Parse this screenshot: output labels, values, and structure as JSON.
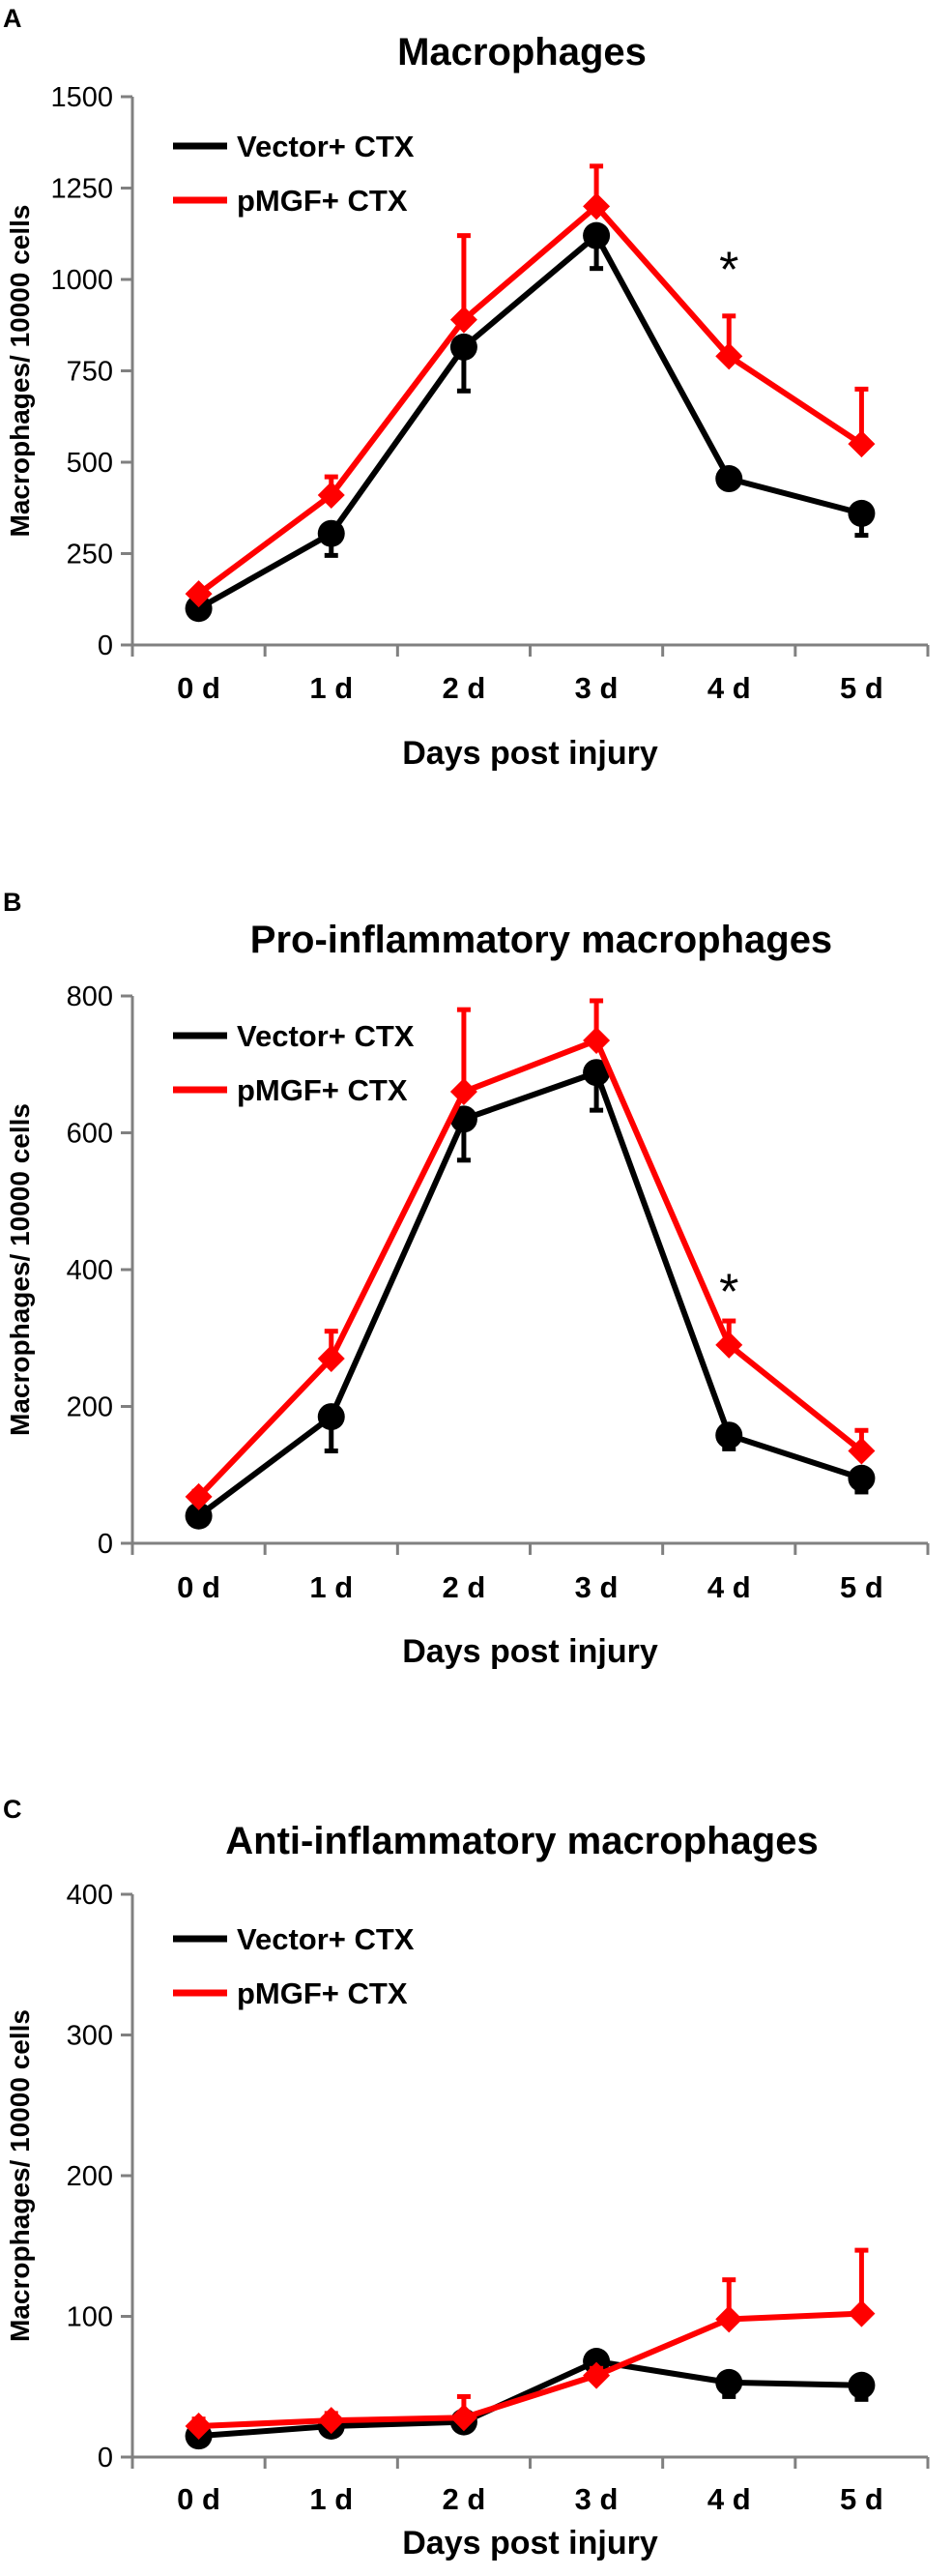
{
  "chart_data": [
    {
      "panel": "A",
      "type": "line",
      "title": "Macrophages",
      "xlabel": "Days post injury",
      "ylabel": "Macrophages/ 10000 cells",
      "categories": [
        "0 d",
        "1 d",
        "2 d",
        "3 d",
        "4 d",
        "5 d"
      ],
      "ylim": [
        0,
        1500
      ],
      "yticks": [
        0,
        250,
        500,
        750,
        1000,
        1250,
        1500
      ],
      "series": [
        {
          "name": "Vector+ CTX",
          "color": "#000000",
          "marker": "circle",
          "values": [
            100,
            305,
            815,
            1120,
            455,
            360
          ],
          "errors": [
            10,
            60,
            120,
            90,
            20,
            60
          ]
        },
        {
          "name": "pMGF+ CTX",
          "color": "#ff0000",
          "marker": "diamond",
          "values": [
            140,
            410,
            890,
            1200,
            790,
            550
          ],
          "errors": [
            10,
            50,
            230,
            110,
            110,
            150
          ]
        }
      ],
      "annotations": [
        {
          "text": "*",
          "category": "4 d",
          "value": 1060
        }
      ]
    },
    {
      "panel": "B",
      "type": "line",
      "title": "Pro-inflammatory macrophages",
      "xlabel": "Days post injury",
      "ylabel": "Macrophages/ 10000 cells",
      "categories": [
        "0 d",
        "1 d",
        "2 d",
        "3 d",
        "4 d",
        "5 d"
      ],
      "ylim": [
        0,
        800
      ],
      "yticks": [
        0,
        200,
        400,
        600,
        800
      ],
      "series": [
        {
          "name": "Vector+ CTX",
          "color": "#000000",
          "marker": "circle",
          "values": [
            40,
            185,
            620,
            688,
            158,
            95
          ],
          "errors": [
            5,
            50,
            60,
            55,
            20,
            20
          ]
        },
        {
          "name": "pMGF+ CTX",
          "color": "#ff0000",
          "marker": "diamond",
          "values": [
            68,
            270,
            660,
            735,
            290,
            135
          ],
          "errors": [
            8,
            40,
            120,
            58,
            35,
            30
          ]
        }
      ],
      "annotations": [
        {
          "text": "*",
          "category": "4 d",
          "value": 385
        }
      ]
    },
    {
      "panel": "C",
      "type": "line",
      "title": "Anti-inflammatory macrophages",
      "xlabel": "Days post injury",
      "ylabel": "Macrophages/ 10000 cells",
      "categories": [
        "0 d",
        "1 d",
        "2 d",
        "3 d",
        "4 d",
        "5 d"
      ],
      "ylim": [
        0,
        400
      ],
      "yticks": [
        0,
        100,
        200,
        300,
        400
      ],
      "series": [
        {
          "name": "Vector+ CTX",
          "color": "#000000",
          "marker": "circle",
          "values": [
            15,
            22,
            25,
            68,
            53,
            51
          ],
          "errors": [
            5,
            5,
            5,
            5,
            10,
            10
          ]
        },
        {
          "name": "pMGF+ CTX",
          "color": "#ff0000",
          "marker": "diamond",
          "values": [
            22,
            26,
            28,
            58,
            98,
            102
          ],
          "errors": [
            5,
            5,
            15,
            5,
            28,
            45
          ]
        }
      ],
      "annotations": []
    }
  ]
}
